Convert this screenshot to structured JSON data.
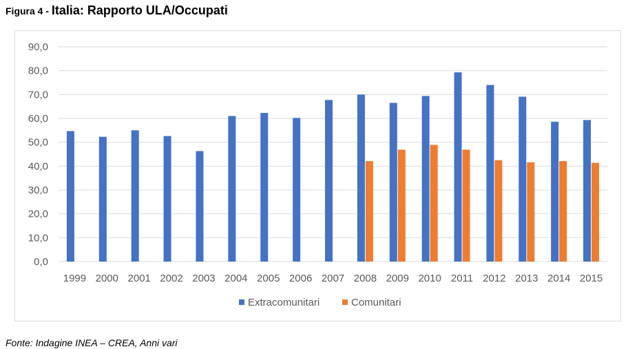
{
  "figure": {
    "label": "Figura 4 - ",
    "title": "Italia: Rapporto ULA/Occupati",
    "source": "Fonte: Indagine INEA – CREA, Anni vari"
  },
  "colors": {
    "extracomunitari": "#4472C4",
    "comunitari": "#ED7D31",
    "grid": "#d9d9d9",
    "axis_text": "#595959"
  },
  "chart_data": {
    "type": "bar",
    "title": "Italia: Rapporto ULA/Occupati",
    "xlabel": "",
    "ylabel": "",
    "ylim": [
      0,
      90
    ],
    "yticks": [
      "0,0",
      "10,0",
      "20,0",
      "30,0",
      "40,0",
      "50,0",
      "60,0",
      "70,0",
      "80,0",
      "90,0"
    ],
    "grid": true,
    "legend_position": "bottom",
    "categories": [
      "1999",
      "2000",
      "2001",
      "2002",
      "2003",
      "2004",
      "2005",
      "2006",
      "2007",
      "2008",
      "2009",
      "2010",
      "2011",
      "2012",
      "2013",
      "2014",
      "2015"
    ],
    "series": [
      {
        "name": "Extracomunitari",
        "color": "#4472C4",
        "values": [
          54.7,
          52.3,
          55.0,
          52.6,
          46.3,
          61.0,
          62.3,
          60.2,
          67.7,
          70.0,
          66.5,
          69.4,
          79.3,
          74.0,
          69.1,
          58.6,
          59.3
        ]
      },
      {
        "name": "Comunitari",
        "color": "#ED7D31",
        "values": [
          null,
          null,
          null,
          null,
          null,
          null,
          null,
          null,
          null,
          42.1,
          46.9,
          48.9,
          46.9,
          42.5,
          41.6,
          42.1,
          41.4
        ]
      }
    ]
  }
}
